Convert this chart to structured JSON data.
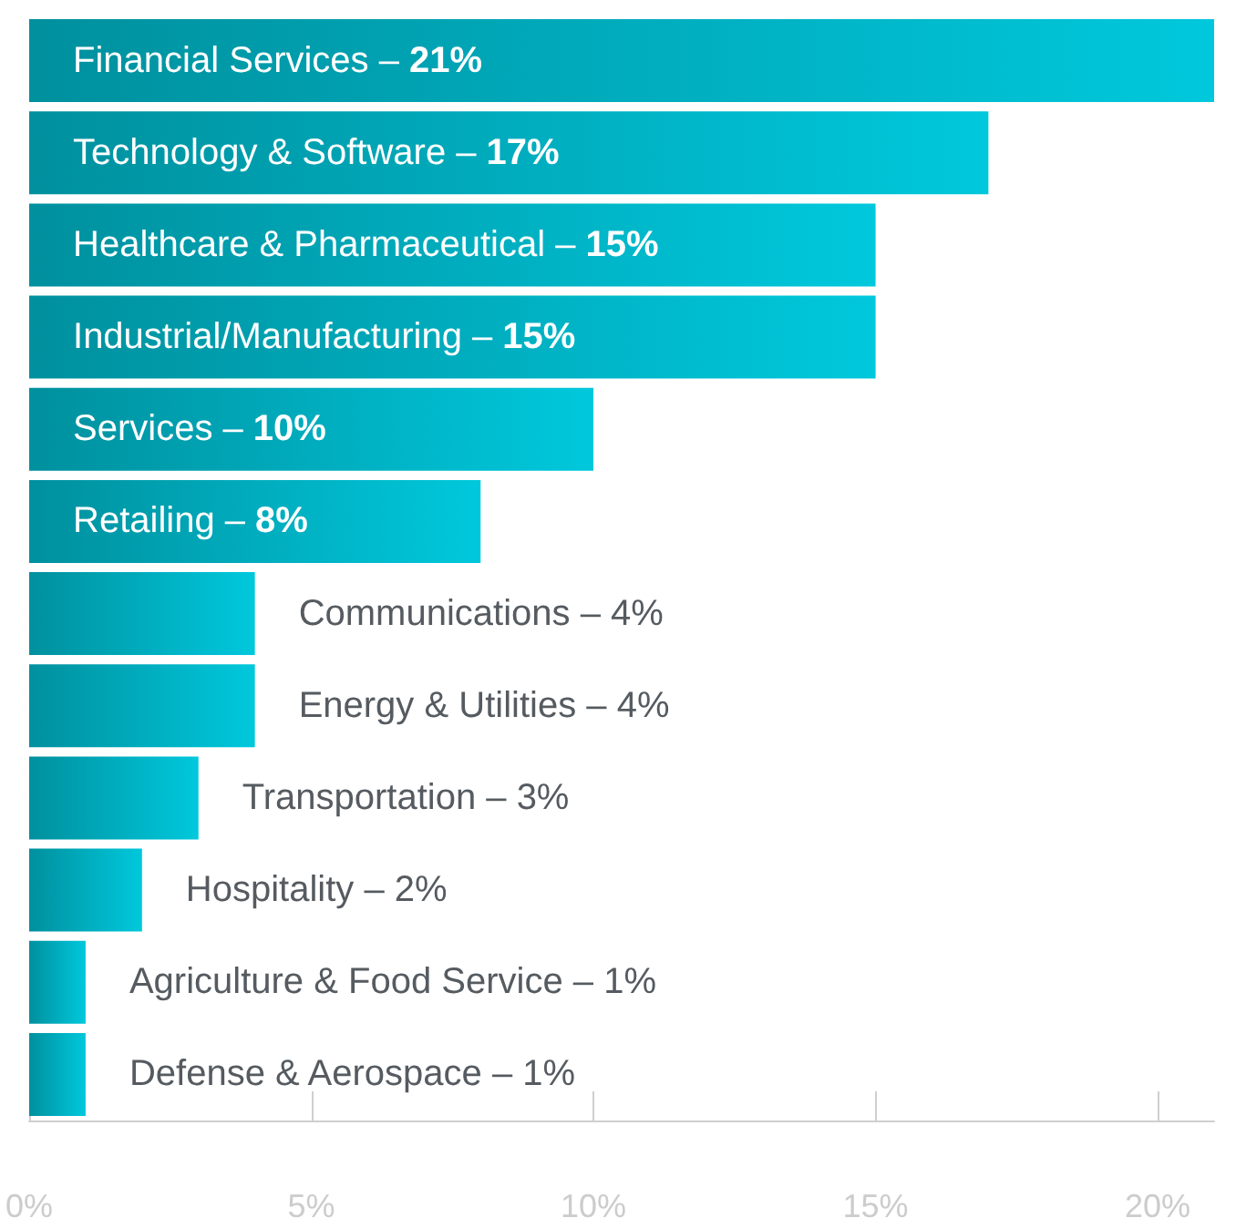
{
  "chart_data": {
    "type": "bar",
    "orientation": "horizontal",
    "categories": [
      "Financial Services –",
      "Technology & Software –",
      "Healthcare & Pharmaceutical –",
      "Industrial/Manufacturing –",
      "Services –",
      "Retailing –",
      "Communications –",
      "Energy & Utilities –",
      "Transportation –",
      "Hospitality –",
      "Agriculture & Food Service –",
      "Defense & Aerospace –"
    ],
    "values": [
      21,
      17,
      15,
      15,
      10,
      8,
      4,
      4,
      3,
      2,
      1,
      1
    ],
    "value_labels": [
      "21%",
      "17%",
      "15%",
      "15%",
      "10%",
      "8%",
      "4%",
      "4%",
      "3%",
      "2%",
      "1%",
      "1%"
    ],
    "color": "#00c8dc",
    "xlim": [
      0,
      21
    ],
    "xticks": [
      {
        "value": 0,
        "label": "0%"
      },
      {
        "value": 5,
        "label": "5%"
      },
      {
        "value": 10,
        "label": "10%"
      },
      {
        "value": 15,
        "label": "15%"
      },
      {
        "value": 20,
        "label": "20%"
      }
    ],
    "tick_labels": "x",
    "grid": false
  }
}
